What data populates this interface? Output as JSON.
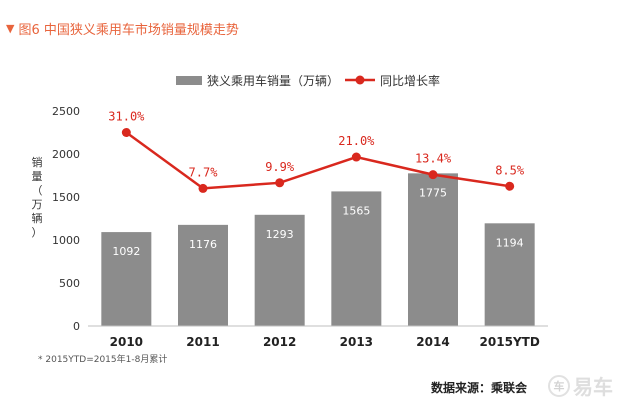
{
  "header": {
    "title": "图6  中国狭义乘用车市场销量规模走势"
  },
  "chart_data": {
    "type": "bar",
    "title": "图6  中国狭义乘用车市场销量规模走势",
    "categories": [
      "2010",
      "2011",
      "2012",
      "2013",
      "2014",
      "2015YTD"
    ],
    "ylabel_chars": [
      "销",
      "量",
      "（",
      "万",
      "辆",
      "）"
    ],
    "ylim": [
      0,
      2500
    ],
    "yticks": [
      0,
      500,
      1000,
      1500,
      2000,
      2500
    ],
    "grid": false,
    "legend_position": "top",
    "series": [
      {
        "name": "狭义乘用车销量（万辆）",
        "type": "bar",
        "color": "#8c8c8c",
        "values": [
          1092,
          1176,
          1293,
          1565,
          1775,
          1194
        ],
        "labels": [
          "1092",
          "1176",
          "1293",
          "1565",
          "1775",
          "1194"
        ]
      },
      {
        "name": "同比增长率",
        "type": "line",
        "color": "#d9281e",
        "values_on_left_axis": [
          2250,
          1600,
          1665,
          1965,
          1760,
          1625
        ],
        "labels": [
          "31.0%",
          "7.7%",
          "9.9%",
          "21.0%",
          "13.4%",
          "8.5%"
        ]
      }
    ]
  },
  "footnote": "* 2015YTD=2015年1-8月累计",
  "source": "数据来源：乘联会",
  "watermark": {
    "logo_char": "车",
    "text": "易车"
  }
}
